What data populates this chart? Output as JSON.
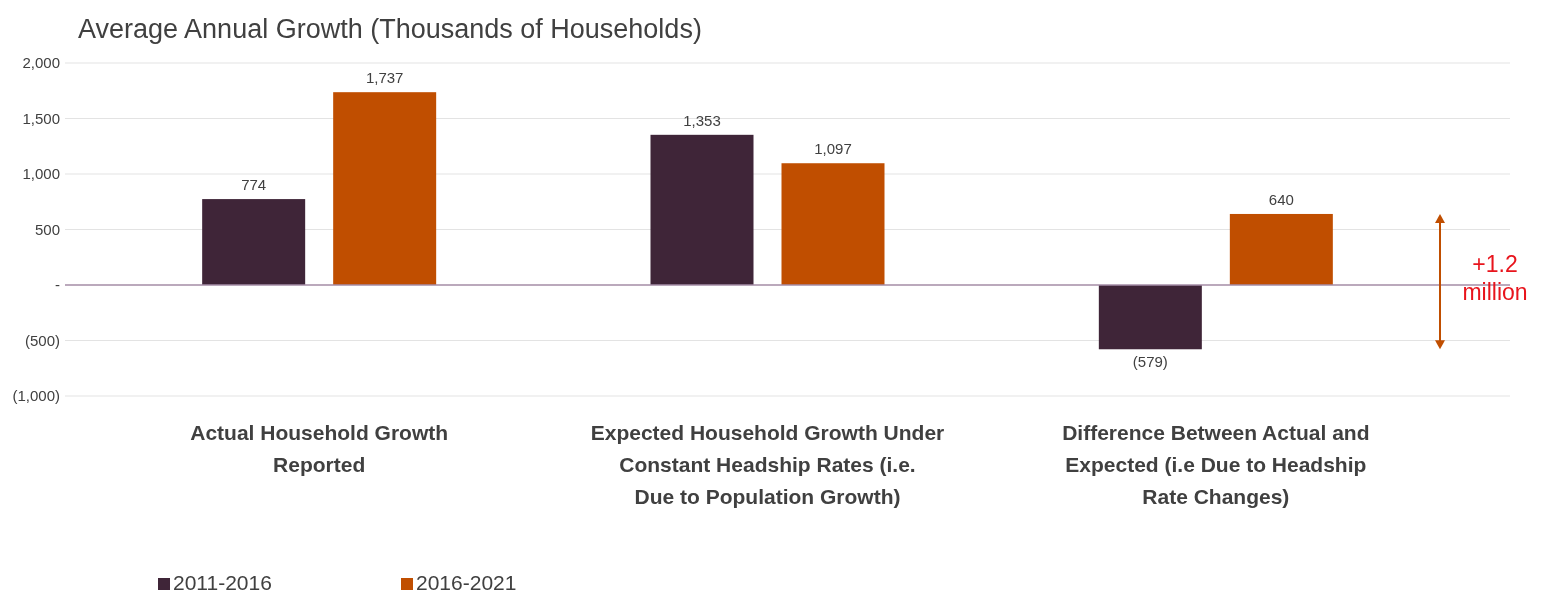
{
  "chart_data": {
    "type": "bar",
    "title": "Average Annual Growth (Thousands of Households)",
    "categories": [
      "Actual Household Growth Reported",
      "Expected Household Growth Under Constant Headship Rates (i.e. Due to Population Growth)",
      "Difference Between Actual and Expected (i.e Due to Headship Rate Changes)"
    ],
    "series": [
      {
        "name": "2011-2016",
        "color": "#3f2538",
        "values": [
          774,
          1353,
          -579
        ],
        "value_labels": [
          "774",
          "1,353",
          "(579)"
        ]
      },
      {
        "name": "2016-2021",
        "color": "#c04e00",
        "values": [
          1737,
          1097,
          640
        ],
        "value_labels": [
          "1,737",
          "1,097",
          "640"
        ]
      }
    ],
    "ylim": [
      -1000,
      2000
    ],
    "yticks": [
      {
        "value": -1000,
        "label": "(1,000)"
      },
      {
        "value": -500,
        "label": "(500)"
      },
      {
        "value": 0,
        "label": "-"
      },
      {
        "value": 500,
        "label": "500"
      },
      {
        "value": 1000,
        "label": "1,000"
      },
      {
        "value": 1500,
        "label": "1,500"
      },
      {
        "value": 2000,
        "label": "2,000"
      }
    ],
    "grid": "y",
    "legend": "bottom left",
    "annotations": [
      "+1.2 million"
    ]
  }
}
